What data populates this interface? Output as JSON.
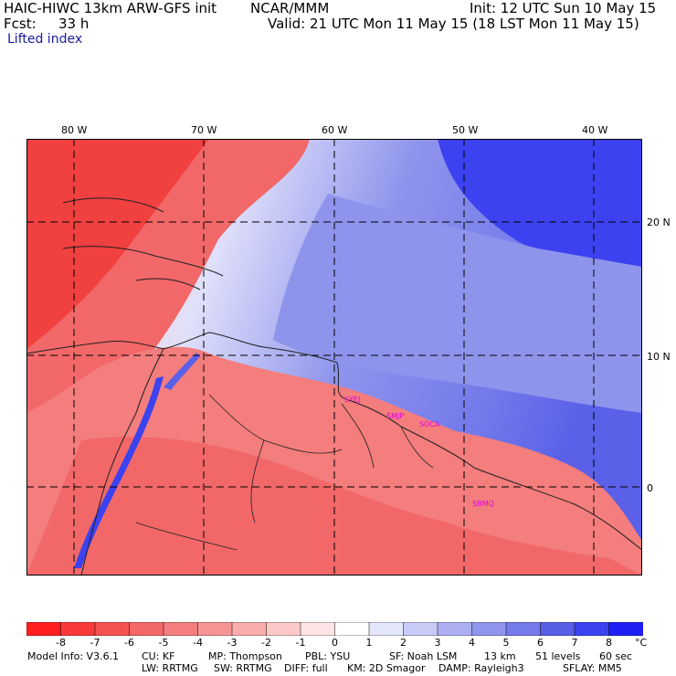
{
  "header": {
    "model_title": "HAIC-HIWC 13km ARW-GFS init",
    "org": "NCAR/MMM",
    "init": "Init: 12 UTC Sun 10 May 15",
    "fcst_label": "Fcst:",
    "fcst_value": "33 h",
    "valid": "Valid: 21 UTC Mon 11 May 15 (18 LST Mon 11 May 15)",
    "field": "Lifted index"
  },
  "axes": {
    "lon_labels": [
      "80 W",
      "70 W",
      "60 W",
      "50 W",
      "40 W"
    ],
    "lat_labels": [
      "20 N",
      "10 N",
      "0"
    ]
  },
  "stations": [
    "SYEJ",
    "SMJP",
    "SOCA",
    "SBMQ"
  ],
  "colors": {
    "red_strong": "#f01e1e",
    "blue_strong": "#1e1ef0",
    "station": "#e000e0"
  },
  "legend": {
    "ticks": [
      "-8",
      "-7",
      "-6",
      "-5",
      "-4",
      "-3",
      "-2",
      "-1",
      "0",
      "1",
      "2",
      "3",
      "4",
      "5",
      "6",
      "7",
      "8"
    ],
    "unit": "°C",
    "colors": [
      "#ff1f1f",
      "#f83a3a",
      "#f45252",
      "#f26868",
      "#f47d7d",
      "#f69494",
      "#f9adad",
      "#fcc9c9",
      "#fde3e3",
      "#ffffff",
      "#e4e6fb",
      "#c8cbf6",
      "#acb0f1",
      "#9096ee",
      "#747aea",
      "#585ee6",
      "#3c42ef",
      "#1e1ef5"
    ]
  },
  "footer": {
    "line1": [
      "Model Info: V3.6.1",
      "CU: KF",
      "MP: Thompson",
      "PBL: YSU",
      "SF: Noah LSM",
      "13 km",
      "51 levels",
      "60 sec"
    ],
    "line2": [
      "LW: RRTMG",
      "SW: RRTMG",
      "DIFF: full",
      "KM: 2D Smagor",
      "DAMP: Rayleigh3",
      "SFLAY: MM5"
    ]
  }
}
